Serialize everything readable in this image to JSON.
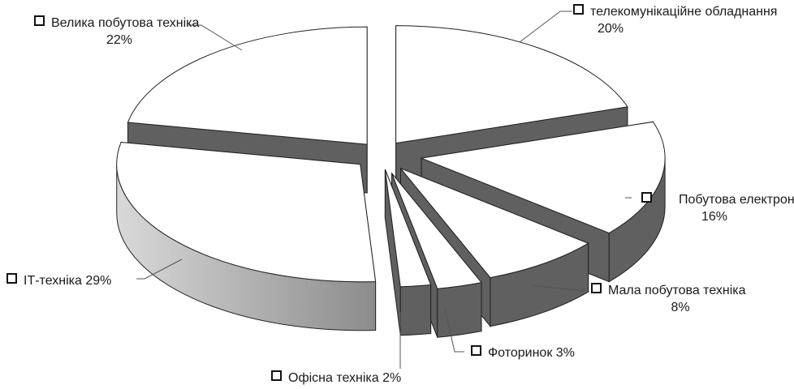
{
  "chart_data": {
    "type": "pie",
    "style": "3d-exploded",
    "slices": [
      {
        "label": "телекомунікаційне обладнання",
        "value": 20,
        "value_label": "20%"
      },
      {
        "label": "Побутова електроніка",
        "value": 16,
        "value_label": "16%"
      },
      {
        "label": "Мала побутова техніка",
        "value": 8,
        "value_label": "8%"
      },
      {
        "label": "Фоторинок",
        "value": 3,
        "value_label": "3%"
      },
      {
        "label": "Офісна техніка",
        "value": 2,
        "value_label": "2%"
      },
      {
        "label": "ІТ-техніка",
        "value": 29,
        "value_label": "29%"
      },
      {
        "label": "Велика побутова техніка",
        "value": 22,
        "value_label": "22%"
      }
    ],
    "colors": {
      "top": "#ffffff",
      "side": "#606060",
      "side_light": "#d9d9d9",
      "edge": "#222222"
    }
  }
}
